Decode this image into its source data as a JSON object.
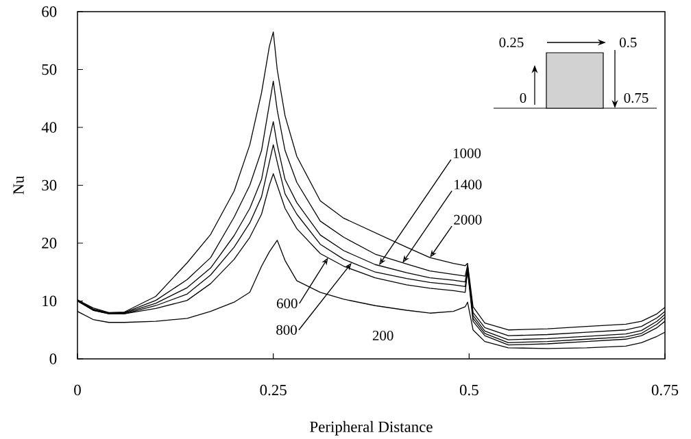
{
  "chart_data": {
    "type": "line",
    "xlabel": "Peripheral Distance",
    "ylabel": "Nu",
    "xlim": [
      0,
      0.75
    ],
    "ylim": [
      0,
      60
    ],
    "xticks": [
      0,
      0.25,
      0.5,
      0.75
    ],
    "yticks": [
      0,
      10,
      20,
      30,
      40,
      50,
      60
    ],
    "x": [
      0,
      0.02,
      0.04,
      0.06,
      0.1,
      0.14,
      0.17,
      0.2,
      0.22,
      0.235,
      0.245,
      0.25,
      0.255,
      0.265,
      0.28,
      0.31,
      0.34,
      0.38,
      0.42,
      0.45,
      0.48,
      0.495,
      0.498,
      0.505,
      0.52,
      0.55,
      0.6,
      0.65,
      0.7,
      0.72,
      0.74,
      0.75
    ],
    "series": [
      {
        "color": "#000000",
        "values": [
          8.2,
          6.8,
          6.3,
          6.3,
          6.5,
          7.0,
          8.2,
          9.8,
          11.5,
          16,
          18.5,
          19.5,
          20.5,
          17,
          13.5,
          11.5,
          10.3,
          9.2,
          8.4,
          7.9,
          8.2,
          9.0,
          9.8,
          5,
          3.0,
          1.9,
          1.8,
          1.9,
          2.2,
          2.8,
          3.9,
          4.6
        ]
      },
      {
        "color": "#000000",
        "values": [
          10.0,
          8.4,
          7.8,
          7.8,
          8.7,
          10.1,
          13.0,
          17.2,
          21,
          25,
          30,
          32,
          30,
          26,
          22.5,
          18.2,
          16.0,
          14.0,
          12.8,
          12.2,
          11.8,
          11.5,
          15.2,
          6.5,
          4.0,
          2.4,
          2.6,
          3.0,
          3.4,
          4.0,
          5.4,
          6.5
        ]
      },
      {
        "color": "#000000",
        "values": [
          10.0,
          8.4,
          7.8,
          7.8,
          9.2,
          11.2,
          14.5,
          19.3,
          23.5,
          28,
          34,
          37,
          34,
          28.5,
          25,
          19.8,
          17.2,
          15.0,
          13.9,
          13.2,
          12.8,
          12.5,
          15.5,
          7,
          4.4,
          2.8,
          3.0,
          3.4,
          3.8,
          4.4,
          6.0,
          7.2
        ]
      },
      {
        "color": "#000000",
        "values": [
          10.1,
          8.5,
          7.9,
          7.9,
          9.6,
          12.3,
          15.7,
          21.3,
          26,
          31,
          38,
          41,
          37,
          31,
          27,
          21.4,
          18.7,
          16.3,
          14.9,
          14.0,
          13.6,
          13.3,
          15.8,
          7.5,
          4.8,
          3.3,
          3.5,
          3.9,
          4.3,
          4.9,
          6.5,
          7.7
        ]
      },
      {
        "color": "#000000",
        "values": [
          10.2,
          8.6,
          7.9,
          8.0,
          10.1,
          13.7,
          17.5,
          24.5,
          30,
          36,
          44,
          48,
          43,
          36,
          30.5,
          23.8,
          21,
          18.1,
          16.4,
          15.2,
          14.6,
          14.3,
          16.2,
          8,
          5.4,
          4.0,
          4.2,
          4.6,
          5.0,
          5.6,
          7.1,
          8.2
        ]
      },
      {
        "color": "#000000",
        "values": [
          10.2,
          8.8,
          8.0,
          8.1,
          10.8,
          16.6,
          21.5,
          29,
          37,
          46,
          54,
          56.5,
          50,
          42,
          35,
          27.3,
          24.3,
          21.8,
          19.3,
          17.5,
          16.5,
          16.1,
          16.5,
          9,
          6.2,
          5.0,
          5.2,
          5.6,
          6.0,
          6.5,
          7.8,
          8.9
        ]
      }
    ],
    "annotations": [
      {
        "text": "600",
        "x": 0.32,
        "y": 17.5
      },
      {
        "text": "800",
        "x": 0.35,
        "y": 16.6
      },
      {
        "text": "1000",
        "x": 0.385,
        "y": 16.2
      },
      {
        "text": "1400",
        "x": 0.415,
        "y": 16.6
      },
      {
        "text": "2000",
        "x": 0.45,
        "y": 17.5
      },
      {
        "text": "200",
        "x": 0.39,
        "y": 9.0
      },
      "0.25",
      "0.5",
      "0",
      "0.75"
    ]
  }
}
